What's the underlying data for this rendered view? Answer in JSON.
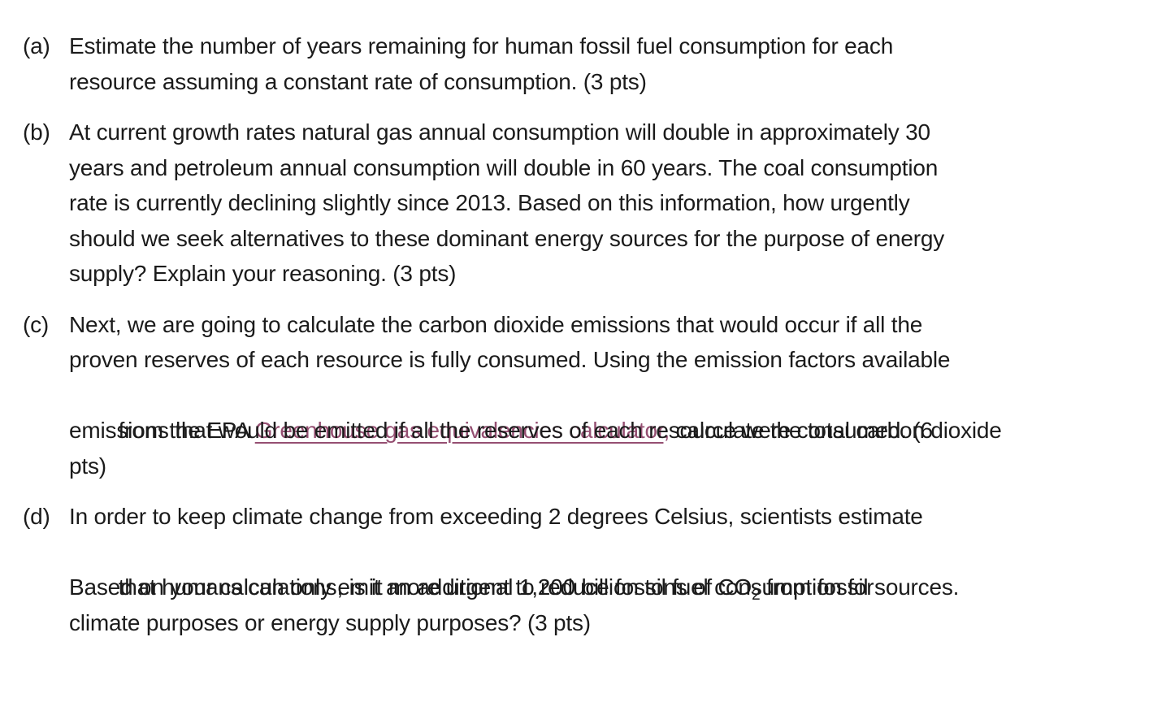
{
  "page": {
    "background": "#ffffff",
    "text_color": "#1b1b1b",
    "link_color": "#954F72"
  },
  "questions": [
    {
      "label": "(a)",
      "lines": [
        "Estimate the number of years remaining for human fossil fuel consumption for each",
        "resource assuming a constant rate of consumption. (3 pts)"
      ]
    },
    {
      "label": "(b)",
      "lines": [
        "At current growth rates natural gas annual consumption will double in approximately 30",
        "years and petroleum annual consumption will double in 60 years. The coal consumption",
        "rate is currently declining slightly since 2013. Based on this information, how urgently",
        "should we seek alternatives to these dominant energy sources for the purpose of energy",
        "supply? Explain your reasoning. (3 pts)"
      ]
    },
    {
      "label": "(c)",
      "lines": [
        "Next, we are going to calculate the carbon dioxide emissions that would occur if all the",
        "proven reserves of each resource is fully consumed. Using the emission factors available"
      ],
      "link_line": {
        "prefix": "from the EPA ",
        "link_text": "Greenhouse gas equivalencies calculator",
        "after_link": ",",
        "suffix": " calculate the total carbon dioxide"
      },
      "lines_after": [
        "emissions that would be emitted if all the reserves of each resource were consumed. (6",
        "pts)"
      ]
    },
    {
      "label": "(d)",
      "lines": [
        "In order to keep climate change from exceeding 2 degrees Celsius, scientists estimate"
      ],
      "co2_line": {
        "prefix": "that humans can only emit an additional 1,200 billion tons of CO",
        "subscript": "2",
        "suffix": " from fossil sources."
      },
      "lines_after": [
        "Based on your calculations, is it more urgent to reduce fossil fuel consumption for",
        "climate purposes or energy supply purposes? (3 pts)"
      ]
    }
  ]
}
